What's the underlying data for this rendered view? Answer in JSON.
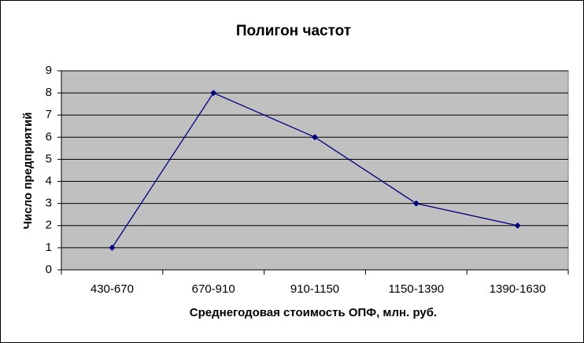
{
  "chart_data": {
    "type": "line",
    "title": "Полигон частот",
    "x_label": "Среднегодовая стоимость ОПФ, млн. руб.",
    "y_label": "Число предприятий",
    "categories": [
      "430-670",
      "670-910",
      "910-1150",
      "1150-1390",
      "1390-1630"
    ],
    "values": [
      1,
      8,
      6,
      3,
      2
    ],
    "color": "#000080",
    "ylim": [
      0,
      9
    ],
    "yticks": [
      0,
      1,
      2,
      3,
      4,
      5,
      6,
      7,
      8,
      9
    ],
    "grid": true
  }
}
